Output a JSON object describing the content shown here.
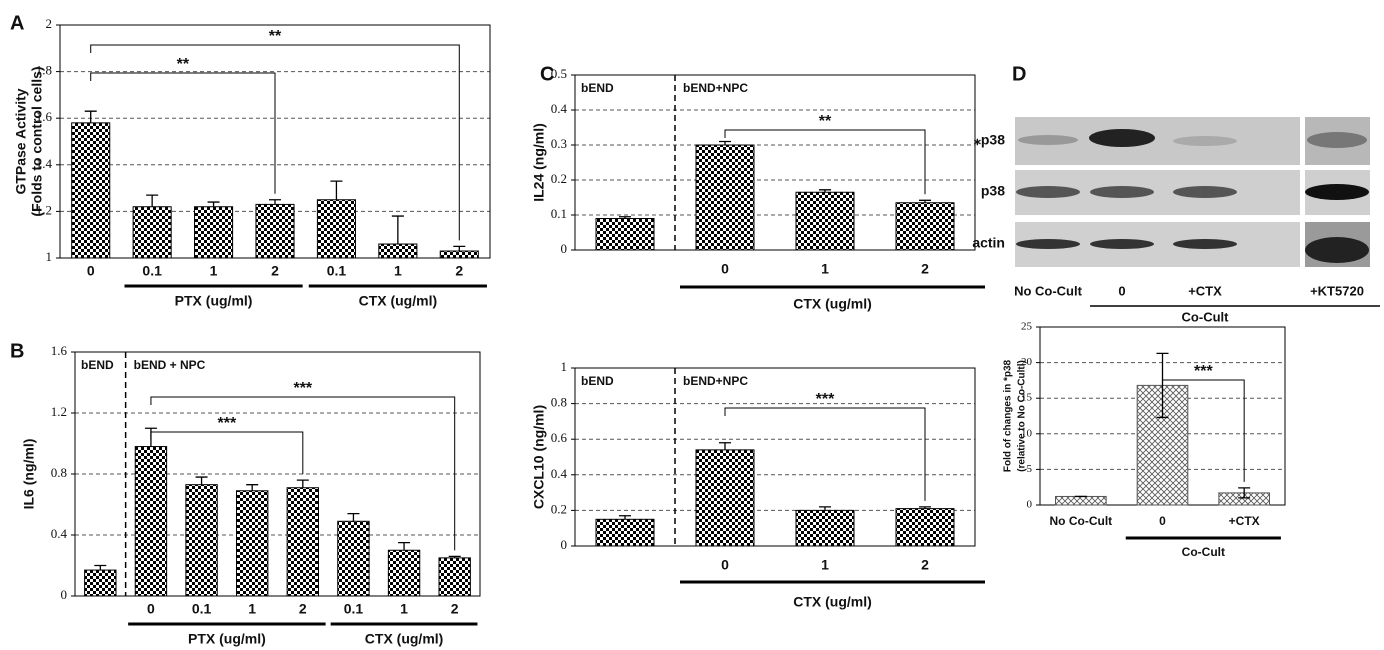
{
  "chart_data": [
    {
      "type": "bar",
      "panel": "A",
      "ylabel": [
        "GTPase Activity",
        "(Folds to control cells)"
      ],
      "categories": [
        "0",
        "0.1",
        "1",
        "2",
        "0.1",
        "1",
        "2"
      ],
      "values": [
        1.58,
        1.22,
        1.22,
        1.23,
        1.25,
        1.06,
        1.03
      ],
      "errors": [
        0.05,
        0.05,
        0.02,
        0.02,
        0.08,
        0.12,
        0.02
      ],
      "ylim": [
        1,
        2
      ],
      "yticks": [
        1,
        1.2,
        1.4,
        1.6,
        1.8,
        2
      ],
      "grid": true,
      "color": "#000000",
      "groups": [
        "PTX (ug/ml)",
        "CTX (ug/ml)"
      ],
      "annotations": [
        "**",
        "**"
      ]
    },
    {
      "type": "bar",
      "panel": "B",
      "ylabel": "IL6 (ng/ml)",
      "categories": [
        null,
        "0",
        "0.1",
        "1",
        "2",
        "0.1",
        "1",
        "2"
      ],
      "values": [
        0.17,
        0.98,
        0.73,
        0.69,
        0.71,
        0.49,
        0.3,
        0.25
      ],
      "errors": [
        0.03,
        0.12,
        0.05,
        0.04,
        0.05,
        0.05,
        0.05,
        0.01
      ],
      "ylim": [
        0,
        1.6
      ],
      "yticks": [
        0,
        0.4,
        0.8,
        1.2,
        1.6
      ],
      "grid": true,
      "color": "#000000",
      "regions": [
        "bEND",
        "bEND + NPC"
      ],
      "groups": [
        "PTX (ug/ml)",
        "CTX (ug/ml)"
      ],
      "annotations": [
        "***",
        "***"
      ]
    },
    {
      "type": "bar",
      "panel": "C",
      "ylabel": "IL24 (ng/ml)",
      "categories": [
        null,
        "0",
        "1",
        "2"
      ],
      "values": [
        0.09,
        0.3,
        0.165,
        0.135
      ],
      "errors": [
        0.005,
        0.01,
        0.007,
        0.007
      ],
      "ylim": [
        0,
        0.5
      ],
      "yticks": [
        0,
        0.1,
        0.2,
        0.3,
        0.4,
        0.5
      ],
      "grid": true,
      "color": "#000000",
      "regions": [
        "bEND",
        "bEND+NPC"
      ],
      "groups": [
        "CTX (ug/ml)"
      ],
      "annotations": [
        "**"
      ]
    },
    {
      "type": "bar",
      "ylabel": "CXCL10 (ng/ml)",
      "categories": [
        null,
        "0",
        "1",
        "2"
      ],
      "values": [
        0.15,
        0.54,
        0.2,
        0.21
      ],
      "errors": [
        0.02,
        0.04,
        0.02,
        0.01
      ],
      "ylim": [
        0,
        1
      ],
      "yticks": [
        0,
        0.2,
        0.4,
        0.6,
        0.8,
        1
      ],
      "grid": true,
      "color": "#000000",
      "regions": [
        "bEND",
        "bEND+NPC"
      ],
      "groups": [
        "CTX (ug/ml)"
      ],
      "annotations": [
        "***"
      ]
    },
    {
      "type": "bar",
      "ylabel": [
        "Fold of changes in *p38",
        "(relative to No Co-Cultl)"
      ],
      "categories": [
        "No Co-Cult",
        "0",
        "+CTX"
      ],
      "values": [
        1.2,
        16.8,
        1.7
      ],
      "errors": [
        0,
        4.5,
        0.7
      ],
      "ylim": [
        0,
        25
      ],
      "yticks": [
        0,
        5,
        10,
        15,
        20,
        25
      ],
      "grid": true,
      "color": "#555555",
      "groups": [
        "Co-Cult"
      ],
      "annotations": [
        "***"
      ]
    }
  ],
  "blot": {
    "panel": "D",
    "rows": [
      "⁎p38",
      "p38",
      "actin"
    ],
    "lanes": [
      "No Co-Cult",
      "0",
      "+CTX",
      "+KT5720"
    ],
    "group": "Co-Cult"
  }
}
